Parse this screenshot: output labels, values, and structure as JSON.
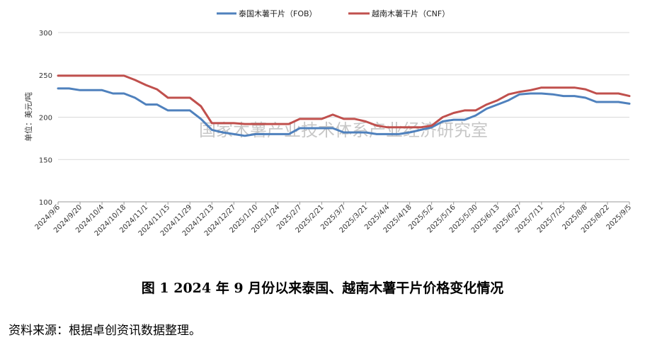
{
  "chart_data": {
    "type": "line",
    "ylabel": "单位：美元/吨",
    "ylim": [
      100,
      300
    ],
    "yticks": [
      100,
      150,
      200,
      250,
      300
    ],
    "grid": "horizontal",
    "legend_position": "top",
    "xtick_labels": [
      "2024/9/6",
      "2024/9/20",
      "2024/10/4",
      "2024/10/18",
      "2024/11/1",
      "2024/11/15",
      "2024/11/29",
      "2024/12/13",
      "2024/12/27",
      "2025/1/10",
      "2025/1/24",
      "2025/2/7",
      "2025/2/21",
      "2025/3/7",
      "2025/3/21",
      "2025/4/4",
      "2025/4/18",
      "2025/5/2",
      "2025/5/16",
      "2025/5/30",
      "2025/6/13",
      "2025/6/27",
      "2025/7/11",
      "2025/7/25",
      "2025/8/8",
      "2025/8/22",
      "2025/9/5"
    ],
    "x": [
      "2024/9/6",
      "2024/9/13",
      "2024/9/20",
      "2024/9/27",
      "2024/10/4",
      "2024/10/11",
      "2024/10/18",
      "2024/10/25",
      "2024/11/1",
      "2024/11/8",
      "2024/11/15",
      "2024/11/22",
      "2024/11/29",
      "2024/12/6",
      "2024/12/13",
      "2024/12/20",
      "2024/12/27",
      "2025/1/3",
      "2025/1/10",
      "2025/1/17",
      "2025/1/24",
      "2025/1/31",
      "2025/2/7",
      "2025/2/14",
      "2025/2/21",
      "2025/2/28",
      "2025/3/7",
      "2025/3/14",
      "2025/3/21",
      "2025/3/28",
      "2025/4/4",
      "2025/4/11",
      "2025/4/18",
      "2025/4/25",
      "2025/5/2",
      "2025/5/9",
      "2025/5/16",
      "2025/5/23",
      "2025/5/30",
      "2025/6/6",
      "2025/6/13",
      "2025/6/20",
      "2025/6/27",
      "2025/7/4",
      "2025/7/11",
      "2025/7/18",
      "2025/7/25",
      "2025/8/1",
      "2025/8/8",
      "2025/8/15",
      "2025/8/22",
      "2025/8/29",
      "2025/9/5"
    ],
    "series": [
      {
        "name": "泰国木薯干片（FOB）",
        "color": "#4f81bd",
        "values": [
          234,
          234,
          232,
          232,
          232,
          228,
          228,
          223,
          215,
          215,
          208,
          208,
          208,
          198,
          185,
          182,
          180,
          178,
          180,
          180,
          180,
          180,
          187,
          187,
          187,
          187,
          182,
          182,
          182,
          180,
          180,
          180,
          182,
          185,
          188,
          195,
          197,
          197,
          202,
          210,
          215,
          220,
          227,
          228,
          228,
          227,
          225,
          225,
          223,
          218,
          218,
          218,
          216
        ]
      },
      {
        "name": "越南木薯干片（CNF）",
        "color": "#c0504d",
        "values": [
          249,
          249,
          249,
          249,
          249,
          249,
          249,
          244,
          238,
          233,
          223,
          223,
          223,
          213,
          193,
          193,
          193,
          192,
          192,
          192,
          192,
          192,
          198,
          198,
          198,
          203,
          198,
          198,
          195,
          190,
          188,
          188,
          188,
          188,
          190,
          200,
          205,
          208,
          208,
          215,
          220,
          227,
          230,
          232,
          235,
          235,
          235,
          235,
          233,
          228,
          228,
          228,
          225
        ]
      }
    ],
    "watermark": "国家木薯产业技术体系产业经济研究室",
    "caption": "图 1   2024 年 9 月份以来泰国、越南木薯干片价格变化情况",
    "source": "资料来源：根据卓创资讯数据整理。"
  }
}
